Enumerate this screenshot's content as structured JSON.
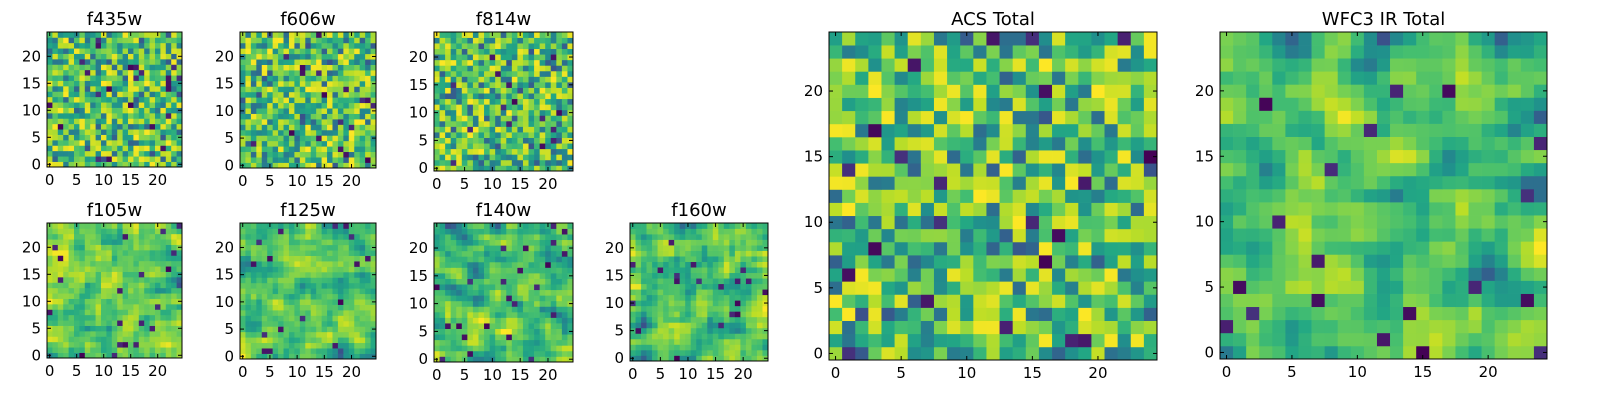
{
  "chart_data": [
    {
      "type": "heatmap",
      "title": "f435w",
      "xlabel": "",
      "ylabel": "",
      "xlim": [
        -0.5,
        24.5
      ],
      "ylim": [
        -0.5,
        24.5
      ],
      "x_ticks": [
        0,
        5,
        10,
        15,
        20
      ],
      "y_ticks": [
        0,
        5,
        10,
        15,
        20
      ],
      "grid_size": 25,
      "colormap": "viridis"
    },
    {
      "type": "heatmap",
      "title": "f606w",
      "xlabel": "",
      "ylabel": "",
      "xlim": [
        -0.5,
        24.5
      ],
      "ylim": [
        -0.5,
        24.5
      ],
      "x_ticks": [
        0,
        5,
        10,
        15,
        20
      ],
      "y_ticks": [
        0,
        5,
        10,
        15,
        20
      ],
      "grid_size": 25,
      "colormap": "viridis"
    },
    {
      "type": "heatmap",
      "title": "f814w",
      "xlabel": "",
      "ylabel": "",
      "xlim": [
        -0.5,
        24.5
      ],
      "ylim": [
        -0.5,
        24.5
      ],
      "x_ticks": [
        0,
        5,
        10,
        15,
        20
      ],
      "y_ticks": [
        0,
        5,
        10,
        15,
        20
      ],
      "grid_size": 25,
      "colormap": "viridis"
    },
    {
      "type": "heatmap",
      "title": "f105w",
      "xlabel": "",
      "ylabel": "",
      "xlim": [
        -0.5,
        24.5
      ],
      "ylim": [
        -0.5,
        24.5
      ],
      "x_ticks": [
        0,
        5,
        10,
        15,
        20
      ],
      "y_ticks": [
        0,
        5,
        10,
        15,
        20
      ],
      "grid_size": 25,
      "colormap": "viridis"
    },
    {
      "type": "heatmap",
      "title": "f125w",
      "xlabel": "",
      "ylabel": "",
      "xlim": [
        -0.5,
        24.5
      ],
      "ylim": [
        -0.5,
        24.5
      ],
      "x_ticks": [
        0,
        5,
        10,
        15,
        20
      ],
      "y_ticks": [
        0,
        5,
        10,
        15,
        20
      ],
      "grid_size": 25,
      "colormap": "viridis"
    },
    {
      "type": "heatmap",
      "title": "f140w",
      "xlabel": "",
      "ylabel": "",
      "xlim": [
        -0.5,
        24.5
      ],
      "ylim": [
        -0.5,
        24.5
      ],
      "x_ticks": [
        0,
        5,
        10,
        15,
        20
      ],
      "y_ticks": [
        0,
        5,
        10,
        15,
        20
      ],
      "grid_size": 25,
      "colormap": "viridis"
    },
    {
      "type": "heatmap",
      "title": "f160w",
      "xlabel": "",
      "ylabel": "",
      "xlim": [
        -0.5,
        24.5
      ],
      "ylim": [
        -0.5,
        24.5
      ],
      "x_ticks": [
        0,
        5,
        10,
        15,
        20
      ],
      "y_ticks": [
        0,
        5,
        10,
        15,
        20
      ],
      "grid_size": 25,
      "colormap": "viridis"
    },
    {
      "type": "heatmap",
      "title": "ACS Total",
      "xlabel": "",
      "ylabel": "",
      "xlim": [
        -0.5,
        24.5
      ],
      "ylim": [
        -0.5,
        24.5
      ],
      "x_ticks": [
        0,
        5,
        10,
        15,
        20
      ],
      "y_ticks": [
        0,
        5,
        10,
        15,
        20
      ],
      "grid_size": 25,
      "colormap": "viridis"
    },
    {
      "type": "heatmap",
      "title": "WFC3 IR Total",
      "xlabel": "",
      "ylabel": "",
      "xlim": [
        -0.5,
        24.5
      ],
      "ylim": [
        -0.5,
        24.5
      ],
      "x_ticks": [
        0,
        5,
        10,
        15,
        20
      ],
      "y_ticks": [
        0,
        5,
        10,
        15,
        20
      ],
      "grid_size": 25,
      "colormap": "viridis"
    }
  ]
}
